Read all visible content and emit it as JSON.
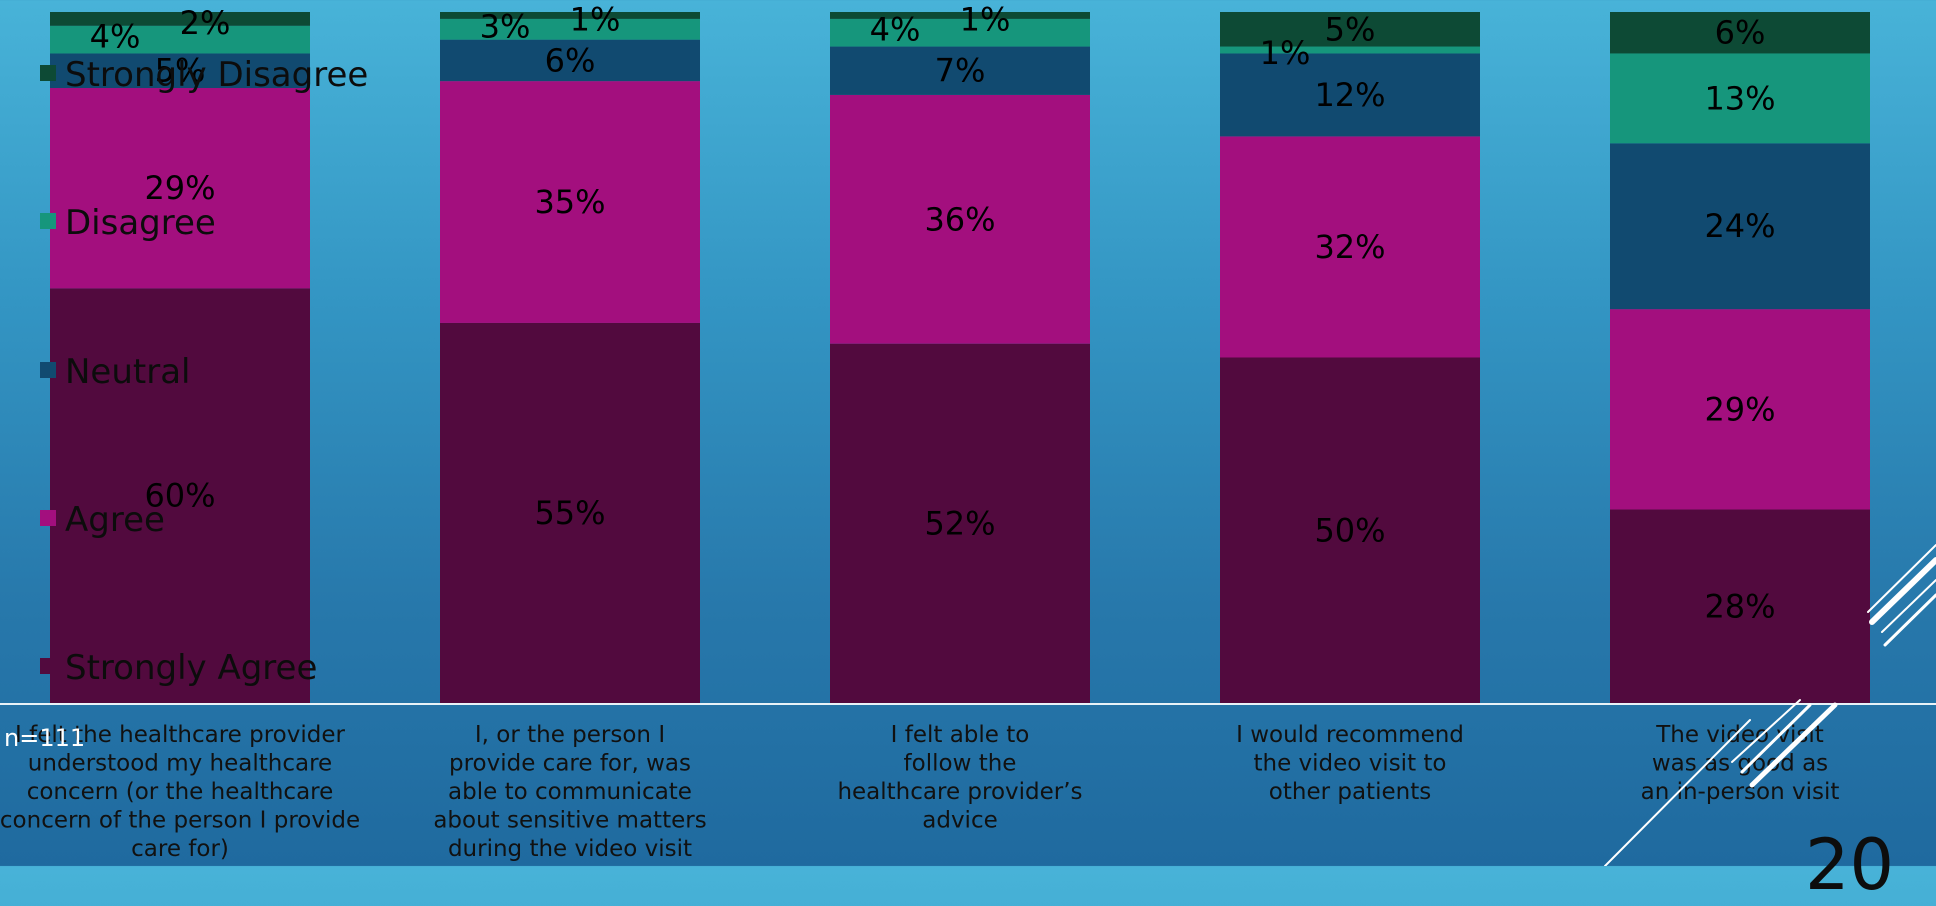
{
  "chart_data": {
    "type": "stacked-bar",
    "ylim": [
      0,
      100
    ],
    "legend_position": "left",
    "categories": [
      [
        "I felt the healthcare provider",
        "understood my healthcare",
        "concern (or the healthcare",
        "concern of the person I provide",
        "care for)"
      ],
      [
        "I, or the person I",
        "provide care for, was",
        "able to communicate",
        "about sensitive matters",
        "during the video visit"
      ],
      [
        "I felt able to",
        "follow the",
        "healthcare provider’s",
        "advice"
      ],
      [
        "I would recommend",
        "the video visit to",
        "other patients"
      ],
      [
        "The video visit",
        "was as good as",
        "an in-person visit"
      ]
    ],
    "series": [
      {
        "name": "Strongly Agree",
        "color": "#520a3e",
        "values": [
          60,
          55,
          52,
          50,
          28
        ]
      },
      {
        "name": "Agree",
        "color": "#a30f7e",
        "values": [
          29,
          35,
          36,
          32,
          29
        ]
      },
      {
        "name": "Neutral",
        "color": "#114a70",
        "values": [
          5,
          6,
          7,
          12,
          24
        ]
      },
      {
        "name": "Disagree",
        "color": "#16967c",
        "values": [
          4,
          3,
          4,
          1,
          13
        ]
      },
      {
        "name": "Strongly Disagree",
        "color": "#0d4a35",
        "values": [
          2,
          1,
          1,
          5,
          6
        ]
      }
    ]
  },
  "n_label": "n=111",
  "page_number": "20"
}
